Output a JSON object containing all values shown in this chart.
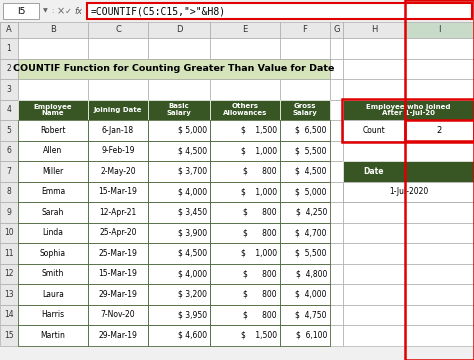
{
  "title": "COUNTIF Function for Counting Greater Than Value for Date",
  "title_bg": "#d6e4bc",
  "header_bg": "#375623",
  "header_fg": "#ffffff",
  "cell_bg": "#ffffff",
  "grid_color_dark": "#375623",
  "grid_color_light": "#a0a0a0",
  "formula_bar_text": "=COUNTIF(C5:C15,\">\"&H8)",
  "formula_cell_ref": "I5",
  "col_headers": [
    "Employee\nName",
    "Joining Date",
    "Basic\nSalary",
    "Others\nAllowances",
    "Gross\nSalary"
  ],
  "rows": [
    [
      "Robert",
      "6-Jan-18",
      "$ 5,000",
      "$    1,500",
      "$  6,500"
    ],
    [
      "Allen",
      "9-Feb-19",
      "$ 4,500",
      "$    1,000",
      "$  5,500"
    ],
    [
      "Miller",
      "2-May-20",
      "$ 3,700",
      "$      800",
      "$  4,500"
    ],
    [
      "Emma",
      "15-Mar-19",
      "$ 4,000",
      "$    1,000",
      "$  5,000"
    ],
    [
      "Sarah",
      "12-Apr-21",
      "$ 3,450",
      "$      800",
      "$  4,250"
    ],
    [
      "Linda",
      "25-Apr-20",
      "$ 3,900",
      "$      800",
      "$  4,700"
    ],
    [
      "Sophia",
      "25-Mar-19",
      "$ 4,500",
      "$    1,000",
      "$  5,500"
    ],
    [
      "Smith",
      "15-Mar-19",
      "$ 4,000",
      "$      800",
      "$  4,800"
    ],
    [
      "Laura",
      "29-Mar-19",
      "$ 3,200",
      "$      800",
      "$  4,000"
    ],
    [
      "Harris",
      "7-Nov-20",
      "$ 3,950",
      "$      800",
      "$  4,750"
    ],
    [
      "Martin",
      "29-Mar-19",
      "$ 4,600",
      "$    1,500",
      "$  6,100"
    ]
  ],
  "side_header_text": "Employee who joined\nAfter 1-Jul-20",
  "side_header_bg": "#375623",
  "side_header_fg": "#ffffff",
  "count_label": "Count",
  "count_value": "2",
  "date_header": "Date",
  "date_value": "1-Jul-2020",
  "red_color": "#e00000",
  "formula_bar_bg": "#ffffff",
  "col_header_bg": "#e8e8e8",
  "row_num_bg": "#e8e8e8",
  "sheet_bg": "#f0f0f0",
  "fig_w": 4.74,
  "fig_h": 3.6,
  "dpi": 100
}
